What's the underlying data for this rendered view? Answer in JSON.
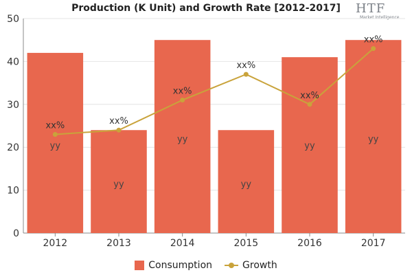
{
  "chart_data": {
    "type": "bar",
    "title": "Production (K Unit) and Growth Rate [2012-2017]",
    "categories": [
      "2012",
      "2013",
      "2014",
      "2015",
      "2016",
      "2017"
    ],
    "series": [
      {
        "name": "Consumption",
        "type": "bar",
        "values": [
          42,
          24,
          45,
          24,
          41,
          45
        ],
        "labels": [
          "yy",
          "yy",
          "yy",
          "yy",
          "yy",
          "yy"
        ],
        "label_values": [
          20.5,
          11.5,
          22,
          11.5,
          20.5,
          22
        ],
        "color": "#E8674E"
      },
      {
        "name": "Growth",
        "type": "line",
        "values": [
          23,
          24,
          31,
          37,
          30,
          43
        ],
        "labels": [
          "xx%",
          "xx%",
          "xx%",
          "xx%",
          "xx%",
          "xx%"
        ],
        "color": "#C9A33B"
      }
    ],
    "ylim": [
      0,
      50
    ],
    "yticks": [
      0,
      10,
      20,
      30,
      40,
      50
    ],
    "grid": true,
    "legend_position": "bottom"
  },
  "logo": {
    "text": "HTF",
    "subtext": "Market Intelligence"
  }
}
